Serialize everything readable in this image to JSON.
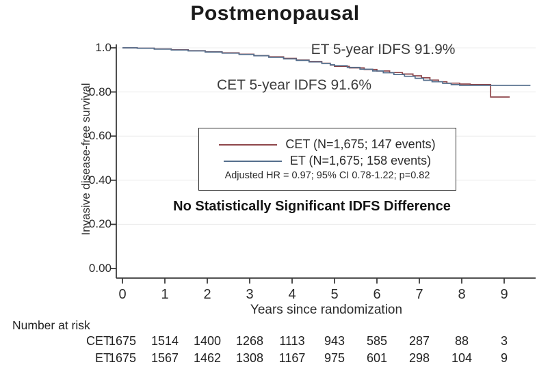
{
  "title": "Postmenopausal",
  "chart_data": {
    "type": "line",
    "subtype": "kaplan-meier-step",
    "title": "Postmenopausal",
    "xlabel": "Years since randomization",
    "ylabel": "Invasive disease-free survival",
    "xlim": [
      0,
      9.7
    ],
    "ylim": [
      0.0,
      1.0
    ],
    "x_ticks": [
      "0",
      "1",
      "2",
      "3",
      "4",
      "5",
      "6",
      "7",
      "8",
      "9"
    ],
    "y_ticks": [
      {
        "value": 0.0,
        "label": "0.00"
      },
      {
        "value": 0.2,
        "label": "0.20"
      },
      {
        "value": 0.4,
        "label": "0.40"
      },
      {
        "value": 0.6,
        "label": "0.60"
      },
      {
        "value": 0.8,
        "label": "0.80"
      },
      {
        "value": 1.0,
        "label": "1.0"
      }
    ],
    "grid": "faint-horizontal",
    "legend_position": "center-inside-box",
    "series": [
      {
        "name": "CET",
        "color": "#8e4549",
        "n": "1,675",
        "events": 147,
        "five_year_idfs": "91.6%",
        "points": [
          [
            0,
            1.0
          ],
          [
            0.35,
            0.998
          ],
          [
            0.75,
            0.995
          ],
          [
            1.15,
            0.991
          ],
          [
            1.55,
            0.987
          ],
          [
            1.95,
            0.982
          ],
          [
            2.35,
            0.977
          ],
          [
            2.75,
            0.971
          ],
          [
            3.1,
            0.965
          ],
          [
            3.45,
            0.959
          ],
          [
            3.8,
            0.952
          ],
          [
            4.1,
            0.945
          ],
          [
            4.4,
            0.938
          ],
          [
            4.7,
            0.93
          ],
          [
            4.9,
            0.922
          ],
          [
            5.0,
            0.916
          ],
          [
            5.35,
            0.909
          ],
          [
            5.7,
            0.902
          ],
          [
            6.0,
            0.895
          ],
          [
            6.3,
            0.888
          ],
          [
            6.6,
            0.881
          ],
          [
            6.85,
            0.873
          ],
          [
            7.05,
            0.864
          ],
          [
            7.25,
            0.854
          ],
          [
            7.45,
            0.846
          ],
          [
            7.65,
            0.84
          ],
          [
            7.95,
            0.836
          ],
          [
            8.2,
            0.833
          ],
          [
            8.68,
            0.833
          ],
          [
            8.68,
            0.777
          ],
          [
            9.13,
            0.777
          ]
        ]
      },
      {
        "name": "ET",
        "color": "#546e8c",
        "n": "1,675",
        "events": 158,
        "five_year_idfs": "91.9%",
        "points": [
          [
            0,
            1.0
          ],
          [
            0.35,
            0.998
          ],
          [
            0.75,
            0.994
          ],
          [
            1.15,
            0.99
          ],
          [
            1.55,
            0.986
          ],
          [
            1.95,
            0.981
          ],
          [
            2.35,
            0.976
          ],
          [
            2.75,
            0.97
          ],
          [
            3.1,
            0.964
          ],
          [
            3.45,
            0.957
          ],
          [
            3.8,
            0.95
          ],
          [
            4.1,
            0.943
          ],
          [
            4.4,
            0.936
          ],
          [
            4.7,
            0.929
          ],
          [
            4.9,
            0.923
          ],
          [
            5.0,
            0.919
          ],
          [
            5.3,
            0.911
          ],
          [
            5.6,
            0.903
          ],
          [
            5.9,
            0.895
          ],
          [
            6.15,
            0.887
          ],
          [
            6.4,
            0.879
          ],
          [
            6.65,
            0.871
          ],
          [
            6.9,
            0.862
          ],
          [
            7.1,
            0.853
          ],
          [
            7.3,
            0.846
          ],
          [
            7.55,
            0.839
          ],
          [
            7.75,
            0.833
          ],
          [
            7.95,
            0.83
          ],
          [
            9.62,
            0.83
          ]
        ]
      }
    ]
  },
  "annotations": {
    "et": "ET 5-year IDFS 91.9%",
    "cet": "CET 5-year IDFS 91.6%",
    "conclusion": "No Statistically Significant IDFS Difference"
  },
  "legend": {
    "items": [
      {
        "label": "CET (N=1,675; 147 events)",
        "color": "#8e4549"
      },
      {
        "label": "ET (N=1,675; 158 events)",
        "color": "#546e8c"
      }
    ],
    "note": "Adjusted HR = 0.97; 95% CI 0.78-1.22; p=0.82"
  },
  "number_at_risk": {
    "header": "Number at risk",
    "rows": [
      {
        "label": "CET",
        "values": [
          "1675",
          "1514",
          "1400",
          "1268",
          "1113",
          "943",
          "585",
          "287",
          "88",
          "3"
        ]
      },
      {
        "label": "ET",
        "values": [
          "1675",
          "1567",
          "1462",
          "1308",
          "1167",
          "975",
          "601",
          "298",
          "104",
          "9"
        ]
      }
    ]
  },
  "colors": {
    "cet": "#8e4549",
    "et": "#546e8c",
    "axis": "#3a3a3a",
    "grid": "#ececec",
    "text": "#2b2b2b"
  }
}
